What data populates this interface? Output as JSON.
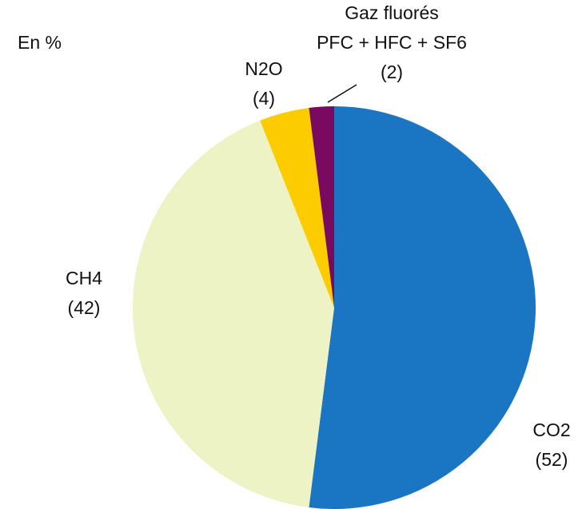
{
  "chart_data": {
    "type": "pie",
    "unit_label": "En %",
    "categories": [
      [
        "CO2"
      ],
      [
        "CH4"
      ],
      [
        "N2O"
      ],
      [
        "Gaz fluorés",
        "PFC + HFC + SF6"
      ]
    ],
    "values": [
      52,
      42,
      4,
      2
    ],
    "value_labels": [
      "(52)",
      "(42)",
      "(4)",
      "(2)"
    ],
    "colors": [
      "#1a75c2",
      "#eef3c6",
      "#fccc00",
      "#7a0a60"
    ],
    "start_angle": 0,
    "direction": "clockwise"
  }
}
